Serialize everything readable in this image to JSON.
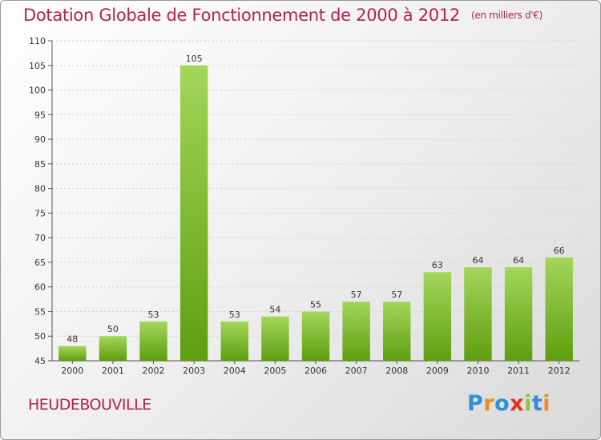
{
  "header": {
    "title": "Dotation Globale de Fonctionnement de 2000 à 2012",
    "unit": "(en milliers d'€)"
  },
  "footer": {
    "commune": "HEUDEBOUVILLE",
    "logo": {
      "text": "Proxiti",
      "letter_colors": [
        "#2f8fd8",
        "#f08a1c",
        "#2f8fd8",
        "#e0301e",
        "#8cc63f",
        "#2f8fd8",
        "#f08a1c"
      ]
    }
  },
  "colors": {
    "bar_top": "#a4d65a",
    "bar_bottom": "#5e9e10",
    "label": "#333333",
    "axis": "#555555",
    "grid": "#cfcfcf"
  },
  "chart_data": {
    "type": "bar",
    "categories": [
      "2000",
      "2001",
      "2002",
      "2003",
      "2004",
      "2005",
      "2006",
      "2007",
      "2008",
      "2009",
      "2010",
      "2011",
      "2012"
    ],
    "values": [
      48,
      50,
      53,
      105,
      53,
      54,
      55,
      57,
      57,
      63,
      64,
      64,
      66
    ],
    "ylim": [
      45,
      110
    ],
    "yticks": [
      45,
      50,
      55,
      60,
      65,
      70,
      75,
      80,
      85,
      90,
      95,
      100,
      105,
      110
    ],
    "grid": true
  }
}
